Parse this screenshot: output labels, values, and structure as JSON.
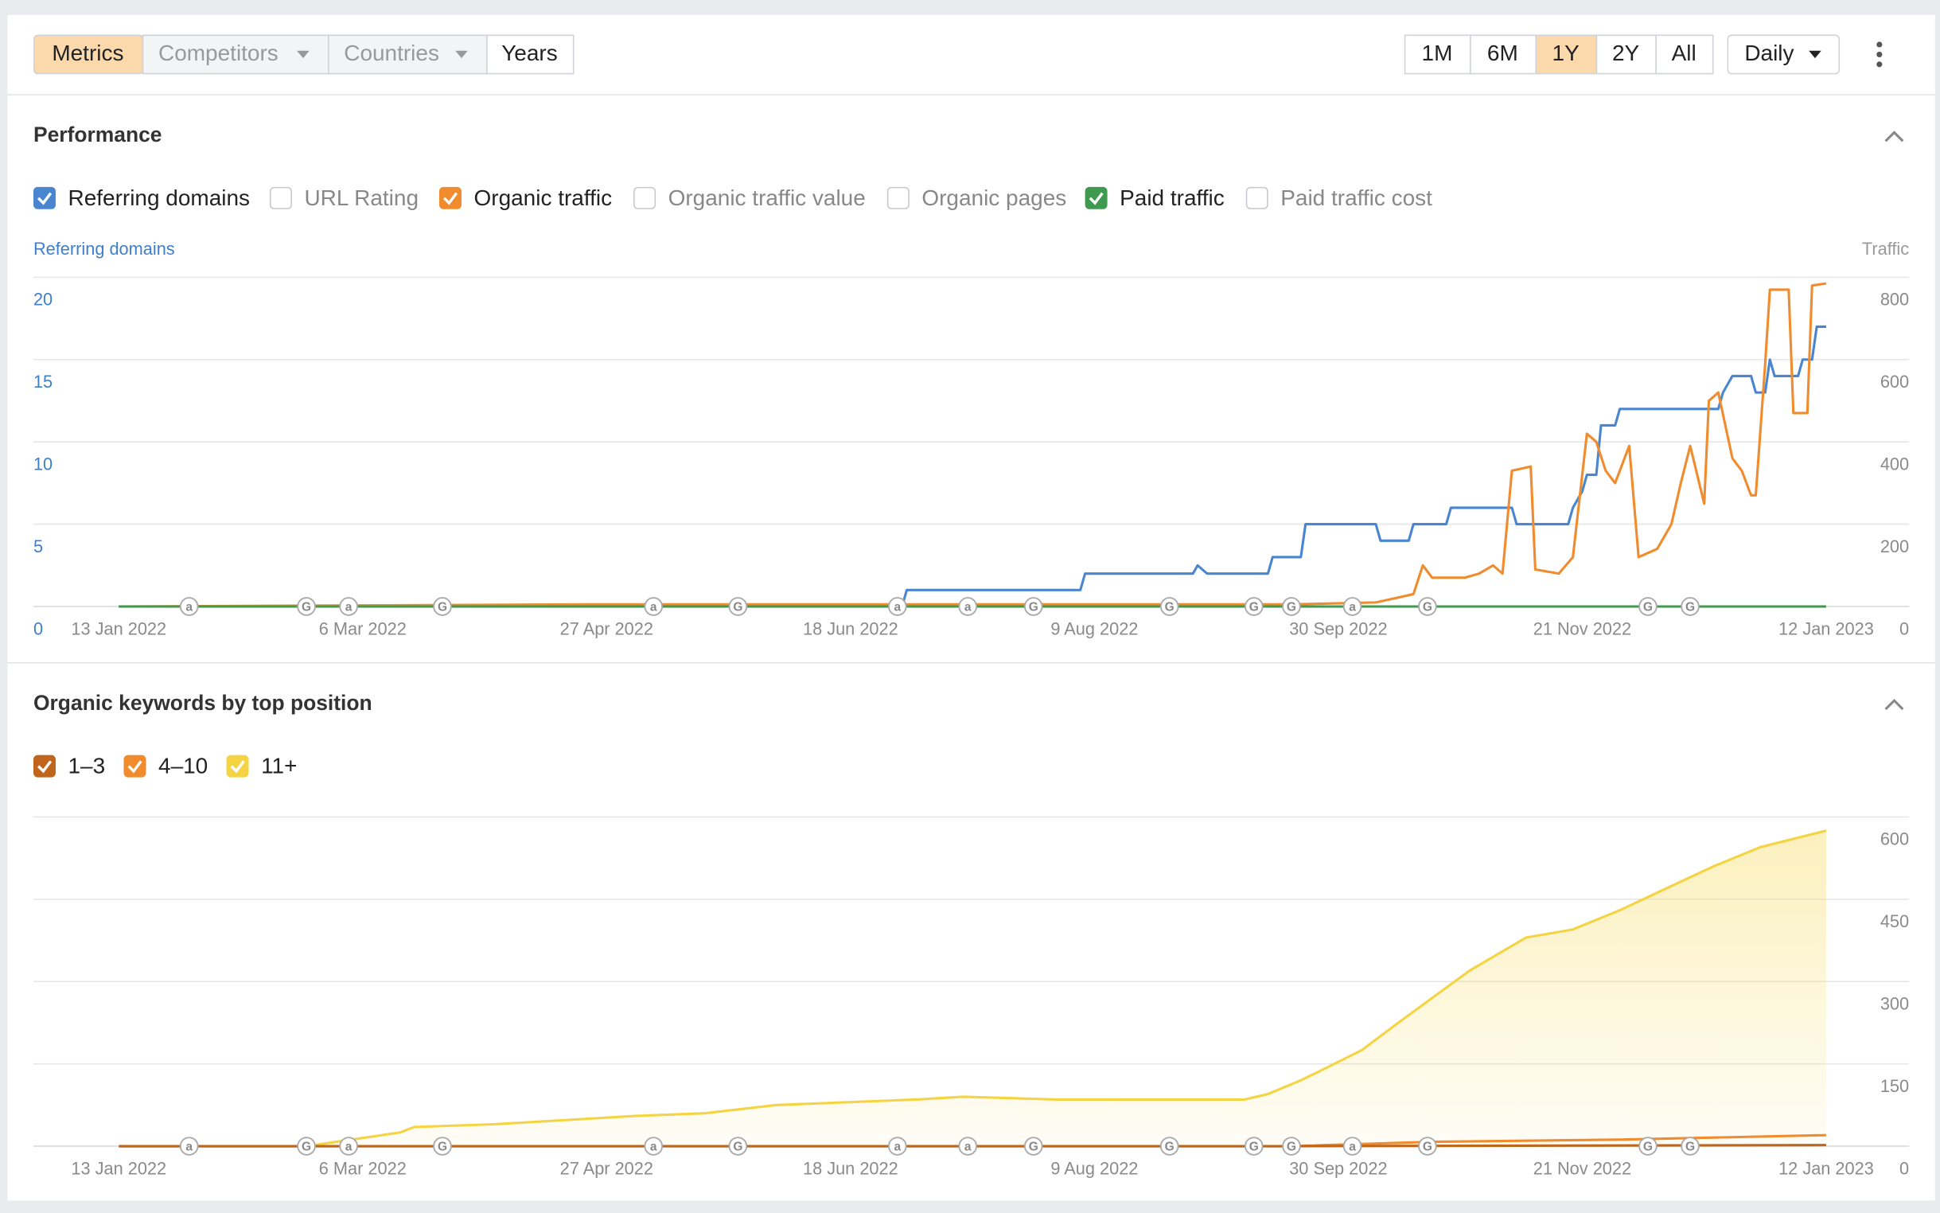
{
  "toolbar": {
    "tabs": [
      {
        "label": "Metrics",
        "active": true
      },
      {
        "label": "Competitors",
        "dropdown": true
      },
      {
        "label": "Countries",
        "dropdown": true
      },
      {
        "label": "Years"
      }
    ],
    "ranges": [
      {
        "label": "1M"
      },
      {
        "label": "6M"
      },
      {
        "label": "1Y",
        "active": true
      },
      {
        "label": "2Y"
      },
      {
        "label": "All"
      }
    ],
    "interval": "Daily"
  },
  "events": [
    {
      "label": "a",
      "x": 15
    },
    {
      "label": "G",
      "x": 40
    },
    {
      "label": "a",
      "x": 49
    },
    {
      "label": "G",
      "x": 69
    },
    {
      "label": "a",
      "x": 114
    },
    {
      "label": "G",
      "x": 132
    },
    {
      "label": "a",
      "x": 166
    },
    {
      "label": "a",
      "x": 181
    },
    {
      "label": "G",
      "x": 195
    },
    {
      "label": "G",
      "x": 224
    },
    {
      "label": "G",
      "x": 242
    },
    {
      "label": "G",
      "x": 250
    },
    {
      "label": "a",
      "x": 263
    },
    {
      "label": "G",
      "x": 279
    },
    {
      "label": "G",
      "x": 326
    },
    {
      "label": "G",
      "x": 335
    }
  ],
  "chart_data": [
    {
      "type": "line",
      "title": "Performance",
      "y_label": "Referring domains",
      "y2_label": "Traffic",
      "xlim": [
        0,
        364
      ],
      "xticks": [
        {
          "value": 0,
          "label": "13 Jan 2022"
        },
        {
          "value": 52,
          "label": "6 Mar 2022"
        },
        {
          "value": 104,
          "label": "27 Apr 2022"
        },
        {
          "value": 156,
          "label": "18 Jun 2022"
        },
        {
          "value": 208,
          "label": "9 Aug 2022"
        },
        {
          "value": 260,
          "label": "30 Sep 2022"
        },
        {
          "value": 312,
          "label": "21 Nov 2022"
        },
        {
          "value": 364,
          "label": "12 Jan 2023"
        }
      ],
      "ylim": [
        0,
        20
      ],
      "yticks": [
        0,
        5,
        10,
        15,
        20
      ],
      "y2lim": [
        0,
        800
      ],
      "y2ticks": [
        0,
        200,
        400,
        600,
        800
      ],
      "series": [
        {
          "name": "Referring domains",
          "checked": true,
          "color": "#4a86d0",
          "axis": "y",
          "x": [
            0,
            167,
            168,
            205,
            206,
            229,
            230,
            232,
            245,
            246,
            252,
            253,
            268,
            269,
            275,
            276,
            283,
            284,
            297,
            298,
            309,
            310,
            312,
            313,
            315,
            316,
            319,
            320,
            341,
            342,
            344,
            348,
            349,
            351,
            352,
            353,
            354,
            358,
            359,
            361,
            362,
            364
          ],
          "values": [
            0,
            0,
            1,
            1,
            2,
            2,
            2.5,
            2,
            2,
            3,
            3,
            5,
            5,
            4,
            4,
            5,
            5,
            6,
            6,
            5,
            5,
            6,
            7,
            8,
            8,
            11,
            11,
            12,
            12,
            13,
            14,
            14,
            13,
            13,
            15,
            14,
            14,
            14,
            15,
            15,
            17,
            17
          ]
        },
        {
          "name": "URL Rating",
          "checked": false
        },
        {
          "name": "Organic traffic",
          "checked": true,
          "color": "#f08c2e",
          "axis": "y2",
          "x": [
            0,
            100,
            250,
            268,
            272,
            276,
            278,
            280,
            287,
            290,
            293,
            295,
            297,
            301,
            302,
            307,
            310,
            313,
            315,
            317,
            319,
            322,
            324,
            328,
            331,
            333,
            335,
            338,
            339,
            341,
            344,
            346,
            348,
            349,
            351,
            352,
            356,
            357,
            360,
            361,
            364
          ],
          "values": [
            0,
            5,
            5,
            10,
            20,
            30,
            100,
            70,
            70,
            80,
            100,
            80,
            330,
            340,
            90,
            80,
            120,
            420,
            400,
            330,
            300,
            390,
            120,
            140,
            200,
            300,
            390,
            250,
            500,
            520,
            360,
            330,
            270,
            270,
            590,
            770,
            770,
            470,
            470,
            780,
            785
          ]
        },
        {
          "name": "Organic traffic value",
          "checked": false
        },
        {
          "name": "Organic pages",
          "checked": false
        },
        {
          "name": "Paid traffic",
          "checked": true,
          "color": "#3f9a4f",
          "axis": "y2",
          "x": [
            0,
            364
          ],
          "values": [
            0,
            0
          ]
        },
        {
          "name": "Paid traffic cost",
          "checked": false
        }
      ]
    },
    {
      "type": "area",
      "title": "Organic keywords by top position",
      "xlim": [
        0,
        364
      ],
      "xticks": [
        {
          "value": 0,
          "label": "13 Jan 2022"
        },
        {
          "value": 52,
          "label": "6 Mar 2022"
        },
        {
          "value": 104,
          "label": "27 Apr 2022"
        },
        {
          "value": 156,
          "label": "18 Jun 2022"
        },
        {
          "value": 208,
          "label": "9 Aug 2022"
        },
        {
          "value": 260,
          "label": "30 Sep 2022"
        },
        {
          "value": 312,
          "label": "21 Nov 2022"
        },
        {
          "value": 364,
          "label": "12 Jan 2023"
        }
      ],
      "ylim": [
        0,
        600
      ],
      "yticks": [
        0,
        150,
        300,
        450,
        600
      ],
      "series": [
        {
          "name": "1–3",
          "checked": true,
          "color": "#c0651c",
          "x": [
            0,
            250,
            364
          ],
          "values": [
            0,
            0,
            2
          ]
        },
        {
          "name": "4–10",
          "checked": true,
          "color": "#f08c2e",
          "x": [
            0,
            250,
            280,
            320,
            364
          ],
          "values": [
            0,
            0,
            8,
            12,
            20
          ]
        },
        {
          "name": "11+",
          "checked": true,
          "color": "#f5d443",
          "x": [
            0,
            40,
            48,
            60,
            63,
            80,
            110,
            125,
            140,
            170,
            180,
            200,
            240,
            245,
            252,
            258,
            265,
            272,
            280,
            288,
            296,
            300,
            310,
            320,
            330,
            340,
            350,
            364
          ],
          "values": [
            0,
            0,
            10,
            25,
            35,
            40,
            55,
            60,
            75,
            85,
            90,
            85,
            85,
            95,
            120,
            145,
            175,
            220,
            270,
            320,
            360,
            380,
            395,
            430,
            470,
            510,
            545,
            575
          ]
        }
      ]
    }
  ]
}
